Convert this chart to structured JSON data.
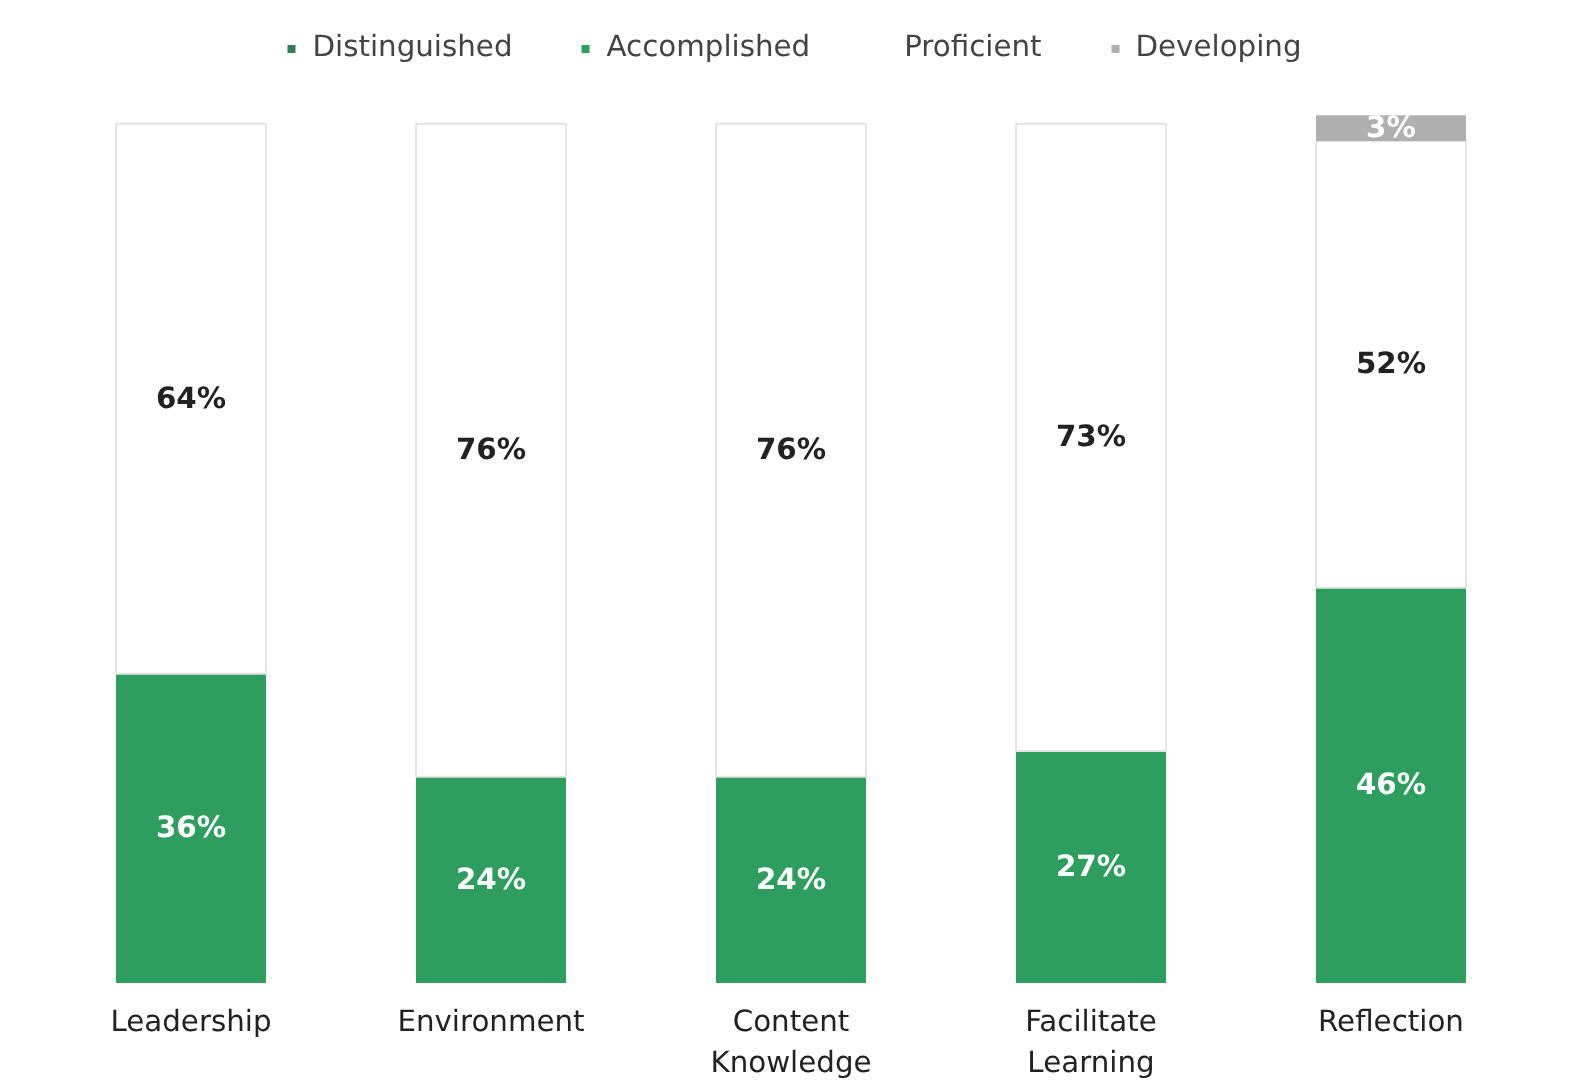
{
  "chart_data": {
    "type": "bar",
    "stacked": true,
    "legend": "top",
    "tick_labels": "x",
    "categories": [
      "Leadership",
      "Environment",
      "Content Knowledge",
      "Facilitate Learning",
      "Reflection"
    ],
    "series": [
      {
        "name": "Distinguished",
        "color": "#2e7d5b",
        "values": [
          null,
          null,
          null,
          null,
          null
        ]
      },
      {
        "name": "Accomplished",
        "color": "#2e9e5e",
        "values": [
          36,
          24,
          24,
          27,
          46
        ],
        "value_labels": [
          "36%",
          "24%",
          "24%",
          "27%",
          "46%"
        ]
      },
      {
        "name": "Proficient",
        "color": "#ffffff",
        "values": [
          64,
          76,
          76,
          73,
          52
        ],
        "value_labels": [
          "64%",
          "76%",
          "76%",
          "73%",
          "52%"
        ]
      },
      {
        "name": "Developing",
        "color": "#b0b0b0",
        "values": [
          null,
          null,
          null,
          null,
          3
        ],
        "value_labels": [
          null,
          null,
          null,
          null,
          "3%"
        ]
      }
    ]
  }
}
